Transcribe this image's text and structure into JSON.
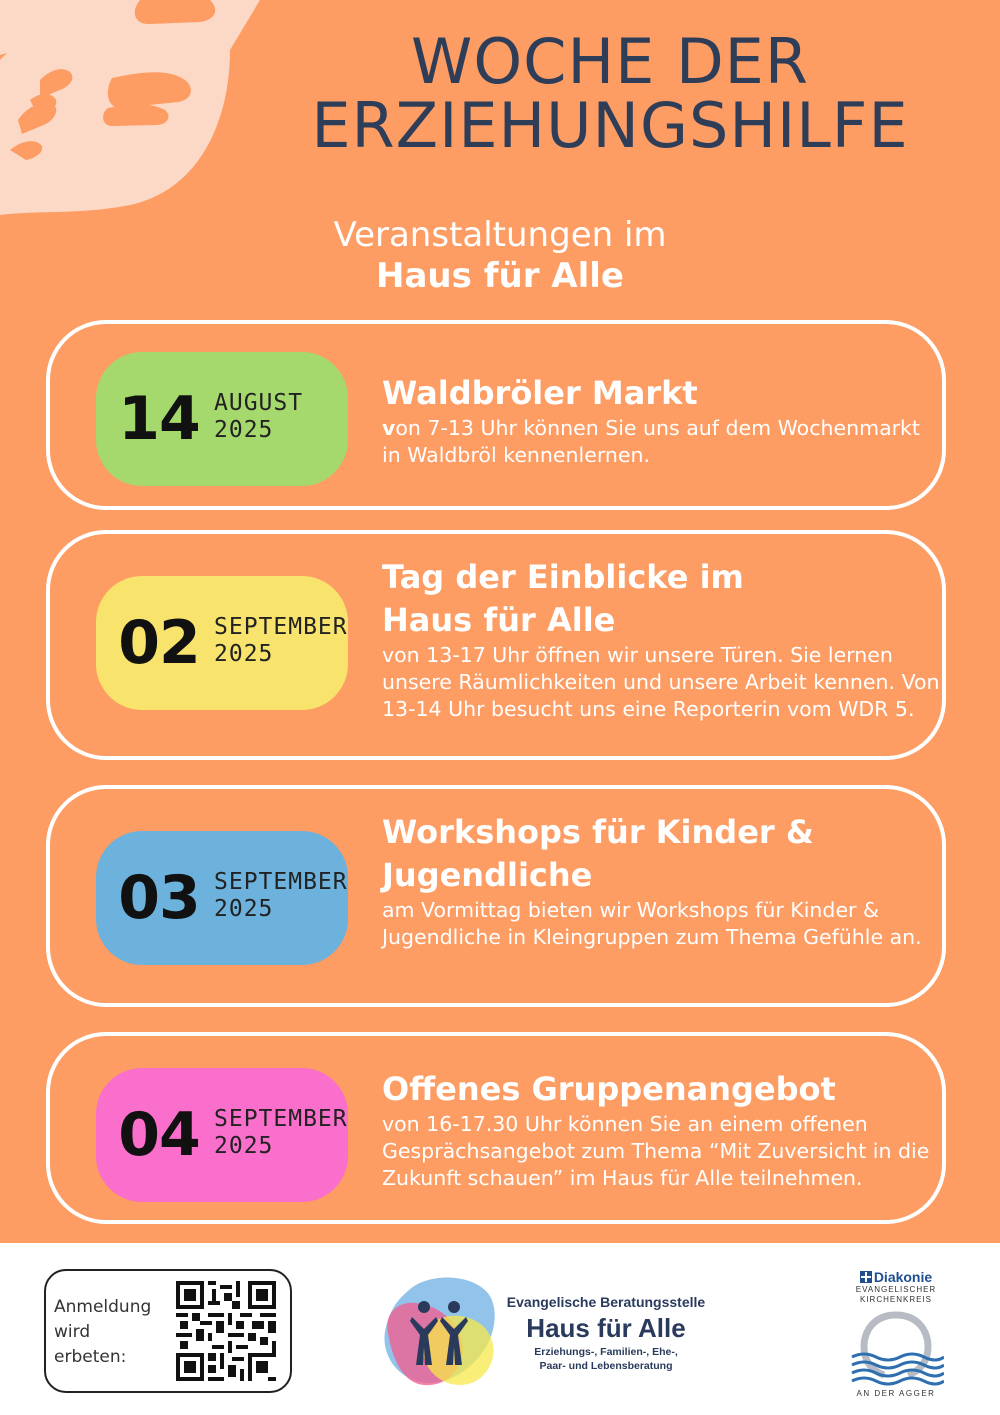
{
  "header": {
    "title_line1": "WOCHE DER",
    "title_line2": "ERZIEHUNGSHILFE",
    "subtitle_line1": "Veranstaltungen im",
    "subtitle_line2": "Haus für Alle"
  },
  "events": [
    {
      "day": "14",
      "month": "AUGUST",
      "year": "2025",
      "pill_color": "#a6d96d",
      "title_line1": "Waldbröler Markt",
      "title_line2": "",
      "desc_first_letter": "v",
      "desc_rest": "on 7-13 Uhr können Sie uns auf dem Wochenmarkt in Waldbröl kennenlernen."
    },
    {
      "day": "02",
      "month": "SEPTEMBER",
      "year": "2025",
      "pill_color": "#f8e46c",
      "title_line1": "Tag der Einblicke im",
      "title_line2": "Haus für Alle",
      "desc": "von 13-17 Uhr öffnen wir unsere Türen. Sie lernen unsere Räumlichkeiten und unsere Arbeit kennen. Von 13-14 Uhr besucht uns eine Reporterin vom WDR 5."
    },
    {
      "day": "03",
      "month": "SEPTEMBER",
      "year": "2025",
      "pill_color": "#6cb2dc",
      "title_line1": "Workshops für Kinder &",
      "title_line2": "Jugendliche",
      "desc": "am Vormittag bieten wir Workshops für Kinder & Jugendliche in Kleingruppen zum Thema Gefühle an."
    },
    {
      "day": "04",
      "month": "SEPTEMBER",
      "year": "2025",
      "pill_color": "#f96fcb",
      "title_line1": "Offenes Gruppenangebot",
      "title_line2": "",
      "desc": "von 16-17.30 Uhr können Sie an einem offenen Gesprächsangebot zum Thema “Mit Zuversicht in die Zukunft schauen” im Haus für Alle teilnehmen."
    }
  ],
  "footer": {
    "registration_line1": "Anmeldung",
    "registration_line2": "wird",
    "registration_line3": "erbeten:",
    "hfa_line1": "Evangelische Beratungsstelle",
    "hfa_line2": "Haus für Alle",
    "hfa_line3": "Erziehungs-, Familien-, Ehe-,",
    "hfa_line4": "Paar- und Lebensberatung",
    "diakonie_name": "Diakonie",
    "diakonie_sub1": "EVANGELISCHER",
    "diakonie_sub2": "KIRCHENKREIS",
    "diakonie_bottom": "AN DER AGGER"
  },
  "icons": {
    "hands": "hands-illustration-icon",
    "qr": "qr-code-icon",
    "hfa_logo": "haus-fuer-alle-logo-icon",
    "diakonie_cross": "diakonie-cross-icon",
    "diakonie_emblem": "diakonie-emblem-icon"
  }
}
